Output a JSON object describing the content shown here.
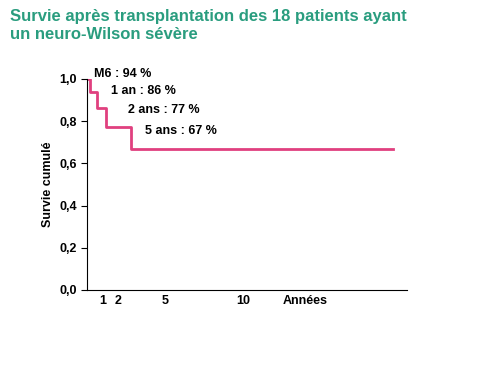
{
  "chart_data": {
    "type": "line",
    "title": "Survie après transplantation des 18 patients ayant\nun neuro-Wilson sévère",
    "x_label": "Années",
    "y_label": "Survie cumulé",
    "x": [
      0,
      0.15,
      0.6,
      1.2,
      2.8,
      19.6
    ],
    "values": [
      1.0,
      0.94,
      0.86,
      0.77,
      0.67,
      0.67
    ],
    "annotations": [
      "M6 : 94 %",
      "1 an : 86 %",
      "2 ans : 77 %",
      "5 ans : 67 %"
    ],
    "color": "#e0407f",
    "line_style": "steps",
    "xlim": [
      0,
      20.5
    ],
    "xticks": [
      1,
      2,
      5,
      10
    ],
    "ylim": [
      0,
      1.0
    ],
    "yticks": [
      {
        "value": 0,
        "label": "0,0"
      },
      {
        "value": 0.2,
        "label": "0,2"
      },
      {
        "value": 0.4,
        "label": "0,4"
      },
      {
        "value": 0.6,
        "label": "0,6"
      },
      {
        "value": 0.8,
        "label": "0,8"
      },
      {
        "value": 1.0,
        "label": "1,0"
      }
    ],
    "grid": false
  }
}
